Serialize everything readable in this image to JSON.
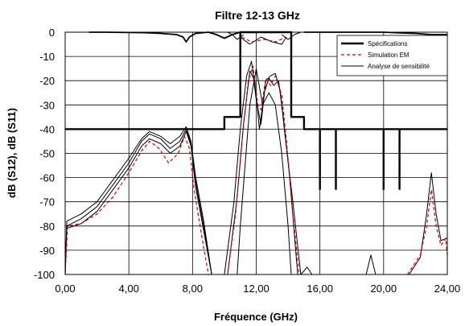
{
  "chart_data": {
    "type": "line",
    "title": "Filtre 12-13 GHz",
    "xlabel": "Fréquence (GHz)",
    "ylabel": "dB (S12), dB (S11)",
    "xlim": [
      0,
      24
    ],
    "ylim": [
      -100,
      0
    ],
    "x_ticks": [
      0,
      4,
      8,
      12,
      16,
      20,
      24
    ],
    "x_tick_labels": [
      "0,00",
      "4,00",
      "8,00",
      "12,00",
      "16,00",
      "20,00",
      "24,00"
    ],
    "y_ticks": [
      0,
      -10,
      -20,
      -30,
      -40,
      -50,
      -60,
      -70,
      -80,
      -90,
      -100
    ],
    "y_tick_labels": [
      "0",
      "-10",
      "-20",
      "-30",
      "-40",
      "-50",
      "-60",
      "-70",
      "-80",
      "-90",
      "-100"
    ],
    "grid": true,
    "legend_position": "top-right",
    "colors": {
      "spec": "#000000",
      "sim": "#cc0000",
      "sens": "#000000"
    },
    "series": [
      {
        "name": "Spécifications",
        "style": "thick-solid",
        "segments": [
          [
            [
              0,
              -40
            ],
            [
              10,
              -40
            ],
            [
              10,
              -35
            ],
            [
              11,
              -35
            ],
            [
              11,
              0
            ],
            [
              14.2,
              0
            ],
            [
              14.2,
              -35
            ],
            [
              15,
              -35
            ],
            [
              15,
              -40
            ],
            [
              24,
              -40
            ]
          ],
          [
            [
              16,
              -40
            ],
            [
              16,
              -65
            ]
          ],
          [
            [
              17,
              -40
            ],
            [
              17,
              -65
            ]
          ],
          [
            [
              20,
              -40
            ],
            [
              20,
              -65
            ]
          ],
          [
            [
              21,
              -40
            ],
            [
              21,
              -65
            ]
          ]
        ]
      },
      {
        "name": "Simulation EM",
        "style": "dashed",
        "segments": [
          [
            [
              0,
              -100
            ],
            [
              0.15,
              -80
            ],
            [
              1,
              -79
            ],
            [
              2,
              -75
            ],
            [
              3,
              -68
            ],
            [
              4,
              -58
            ],
            [
              4.8,
              -49
            ],
            [
              5.3,
              -45
            ],
            [
              5.9,
              -48
            ],
            [
              6.5,
              -54
            ],
            [
              7.1,
              -50
            ],
            [
              7.5,
              -43
            ],
            [
              7.8,
              -48
            ],
            [
              8.1,
              -65
            ],
            [
              8.6,
              -85
            ],
            [
              9.0,
              -100
            ]
          ],
          [
            [
              10.2,
              -100
            ],
            [
              10.7,
              -75
            ],
            [
              11.1,
              -45
            ],
            [
              11.5,
              -20
            ],
            [
              11.8,
              -14
            ],
            [
              12.1,
              -30
            ],
            [
              12.3,
              -32
            ],
            [
              12.6,
              -19
            ],
            [
              12.9,
              -22
            ],
            [
              13.2,
              -18
            ],
            [
              13.6,
              -26
            ],
            [
              13.9,
              -45
            ],
            [
              14.3,
              -75
            ],
            [
              14.7,
              -100
            ]
          ],
          [
            [
              11.1,
              -2
            ],
            [
              11.7,
              -4
            ],
            [
              12.5,
              -3
            ],
            [
              13.3,
              -4
            ],
            [
              13.8,
              -2
            ]
          ],
          [
            [
              21.5,
              -100
            ],
            [
              22.3,
              -92
            ],
            [
              22.7,
              -80
            ],
            [
              23.0,
              -65
            ],
            [
              23.3,
              -80
            ],
            [
              23.6,
              -88
            ],
            [
              23.9,
              -85
            ],
            [
              24,
              -92
            ]
          ]
        ]
      },
      {
        "name": "Analyse de sensibilité",
        "style": "thin-solid",
        "segments": [
          [
            [
              0.0,
              -100
            ],
            [
              0.1,
              -80
            ],
            [
              1.0,
              -77
            ],
            [
              2.0,
              -72
            ],
            [
              3.0,
              -63
            ],
            [
              4.0,
              -54
            ],
            [
              4.8,
              -45
            ],
            [
              5.3,
              -42
            ],
            [
              6.0,
              -44
            ],
            [
              6.6,
              -48
            ],
            [
              7.2,
              -45
            ],
            [
              7.6,
              -40
            ],
            [
              7.9,
              -46
            ],
            [
              8.2,
              -62
            ],
            [
              8.7,
              -80
            ],
            [
              9.2,
              -100
            ]
          ],
          [
            [
              0.0,
              -100
            ],
            [
              0.1,
              -78
            ],
            [
              1.0,
              -75
            ],
            [
              2.0,
              -70
            ],
            [
              3.0,
              -61
            ],
            [
              4.0,
              -52
            ],
            [
              4.8,
              -44
            ],
            [
              5.3,
              -41
            ],
            [
              6.0,
              -43
            ],
            [
              6.6,
              -46
            ],
            [
              7.2,
              -43
            ],
            [
              7.6,
              -39
            ],
            [
              7.9,
              -45
            ],
            [
              8.2,
              -60
            ],
            [
              8.7,
              -78
            ],
            [
              9.2,
              -100
            ]
          ],
          [
            [
              0.0,
              -100
            ],
            [
              0.1,
              -81
            ],
            [
              1.0,
              -79
            ],
            [
              2.0,
              -74
            ],
            [
              3.0,
              -65
            ],
            [
              4.0,
              -56
            ],
            [
              4.8,
              -47
            ],
            [
              5.3,
              -44
            ],
            [
              6.0,
              -46
            ],
            [
              6.6,
              -50
            ],
            [
              7.2,
              -47
            ],
            [
              7.6,
              -41
            ],
            [
              7.9,
              -47
            ],
            [
              8.2,
              -64
            ],
            [
              8.7,
              -82
            ],
            [
              9.2,
              -100
            ]
          ],
          [
            [
              10.0,
              -100
            ],
            [
              10.6,
              -70
            ],
            [
              11.0,
              -40
            ],
            [
              11.4,
              -18
            ],
            [
              11.7,
              -12
            ],
            [
              12.0,
              -28
            ],
            [
              12.3,
              -38
            ],
            [
              12.6,
              -20
            ],
            [
              12.9,
              -18
            ],
            [
              13.2,
              -17
            ],
            [
              13.5,
              -24
            ],
            [
              13.8,
              -42
            ],
            [
              14.3,
              -70
            ],
            [
              14.8,
              -100
            ]
          ],
          [
            [
              10.2,
              -100
            ],
            [
              10.8,
              -68
            ],
            [
              11.2,
              -38
            ],
            [
              11.6,
              -16
            ],
            [
              11.9,
              -20
            ],
            [
              12.2,
              -40
            ],
            [
              12.5,
              -25
            ],
            [
              12.8,
              -19
            ],
            [
              13.1,
              -22
            ],
            [
              13.4,
              -20
            ],
            [
              13.7,
              -35
            ],
            [
              14.1,
              -60
            ],
            [
              14.6,
              -100
            ]
          ],
          [
            [
              10.8,
              -100
            ],
            [
              11.0,
              -80
            ],
            [
              11.3,
              -55
            ],
            [
              11.6,
              -30
            ],
            [
              12.0,
              -15
            ],
            [
              12.4,
              -30
            ],
            [
              12.8,
              -25
            ],
            [
              13.2,
              -30
            ],
            [
              13.6,
              -50
            ],
            [
              14.0,
              -80
            ],
            [
              14.2,
              -100
            ]
          ],
          [
            [
              11.0,
              -2
            ],
            [
              11.6,
              -5
            ],
            [
              12.3,
              -2
            ],
            [
              13.0,
              -4
            ],
            [
              13.6,
              -5
            ],
            [
              13.9,
              -2
            ]
          ],
          [
            [
              10.2,
              0
            ],
            [
              10.5,
              -1
            ],
            [
              10.8,
              -3
            ],
            [
              11.2,
              -1
            ]
          ],
          [
            [
              13.6,
              -1
            ],
            [
              14.0,
              -3
            ],
            [
              14.4,
              -1
            ],
            [
              14.8,
              0
            ]
          ],
          [
            [
              14.8,
              -100
            ],
            [
              15.2,
              -97
            ],
            [
              15.5,
              -100
            ]
          ],
          [
            [
              18.9,
              -100
            ],
            [
              19.2,
              -92
            ],
            [
              19.5,
              -100
            ]
          ],
          [
            [
              21.6,
              -100
            ],
            [
              22.3,
              -93
            ],
            [
              22.7,
              -75
            ],
            [
              23.0,
              -58
            ],
            [
              23.3,
              -75
            ],
            [
              23.6,
              -86
            ],
            [
              24,
              -85
            ]
          ]
        ]
      },
      {
        "name": "",
        "style": "top-trace",
        "segments": [
          [
            [
              1.5,
              0
            ],
            [
              2.5,
              0
            ],
            [
              5,
              -0.2
            ],
            [
              6,
              -0.5
            ],
            [
              7,
              -1
            ],
            [
              7.4,
              -2
            ],
            [
              7.6,
              -4
            ],
            [
              7.8,
              -2
            ],
            [
              8.2,
              -0.5
            ],
            [
              9,
              0
            ],
            [
              9.5,
              -1
            ],
            [
              10,
              -2.5
            ],
            [
              10.5,
              -1
            ],
            [
              11,
              0
            ]
          ],
          [
            [
              15,
              0
            ],
            [
              20,
              0
            ],
            [
              21,
              -0.3
            ],
            [
              22,
              -0.5
            ],
            [
              23,
              -1
            ],
            [
              24,
              -1
            ]
          ]
        ]
      }
    ]
  }
}
